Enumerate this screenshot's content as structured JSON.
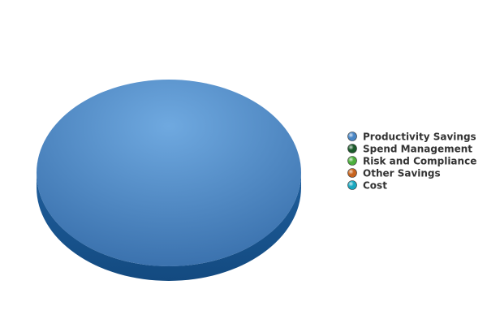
{
  "chart_data": {
    "type": "pie",
    "title": "",
    "categories": [
      "Productivity Savings",
      "Spend Management",
      "Risk and Compliance",
      "Other Savings",
      "Cost"
    ],
    "values": [
      100,
      0,
      0,
      0,
      0
    ],
    "series": [
      {
        "name": "Productivity Savings",
        "value": 100,
        "color": "#4a86c5"
      },
      {
        "name": "Spend Management",
        "value": 0,
        "color": "#1a5a2a"
      },
      {
        "name": "Risk and Compliance",
        "value": 0,
        "color": "#4caf3c"
      },
      {
        "name": "Other Savings",
        "value": 0,
        "color": "#c8641e"
      },
      {
        "name": "Cost",
        "value": 0,
        "color": "#1aa8c0"
      }
    ],
    "style": "3d",
    "legend_position": "right"
  }
}
